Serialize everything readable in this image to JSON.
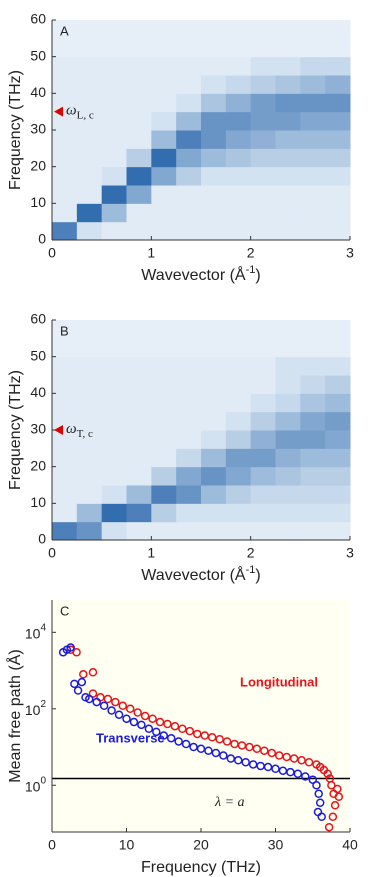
{
  "chart_data": [
    {
      "type": "heatmap",
      "label": "A",
      "xlabel": [
        "Wavevector (Å",
        "-1",
        ")"
      ],
      "ylabel": "Frequency (THz)",
      "xlim": [
        0,
        3
      ],
      "ylim": [
        0,
        60
      ],
      "xticks": [
        0,
        1,
        2,
        3
      ],
      "yticks": [
        0,
        10,
        20,
        30,
        40,
        50,
        60
      ],
      "color": "#1f5fa8",
      "marker": {
        "value": 35,
        "symbol": "ω",
        "sub": "L, c",
        "color": "#e00000"
      },
      "z": [
        [
          0.6,
          0.1,
          0.05,
          0.05,
          0.05,
          0.05,
          0.05,
          0.05,
          0.05,
          0.05,
          0.05,
          0.05
        ],
        [
          0.05,
          0.7,
          0.3,
          0.05,
          0.05,
          0.05,
          0.05,
          0.05,
          0.05,
          0.05,
          0.05,
          0.05
        ],
        [
          0.05,
          0.05,
          0.7,
          0.4,
          0.05,
          0.05,
          0.05,
          0.05,
          0.05,
          0.05,
          0.05,
          0.05
        ],
        [
          0.05,
          0.05,
          0.1,
          0.7,
          0.4,
          0.2,
          0.1,
          0.1,
          0.1,
          0.1,
          0.1,
          0.1
        ],
        [
          0.05,
          0.05,
          0.05,
          0.2,
          0.7,
          0.4,
          0.3,
          0.25,
          0.2,
          0.2,
          0.2,
          0.2
        ],
        [
          0.05,
          0.05,
          0.05,
          0.05,
          0.3,
          0.6,
          0.5,
          0.4,
          0.35,
          0.3,
          0.3,
          0.3
        ],
        [
          0.05,
          0.05,
          0.05,
          0.05,
          0.1,
          0.3,
          0.5,
          0.5,
          0.45,
          0.45,
          0.4,
          0.4
        ],
        [
          0.05,
          0.05,
          0.05,
          0.05,
          0.05,
          0.1,
          0.25,
          0.35,
          0.45,
          0.5,
          0.5,
          0.5
        ],
        [
          0.05,
          0.05,
          0.05,
          0.05,
          0.05,
          0.05,
          0.1,
          0.15,
          0.2,
          0.25,
          0.3,
          0.35
        ],
        [
          0.05,
          0.05,
          0.05,
          0.05,
          0.05,
          0.05,
          0.05,
          0.05,
          0.1,
          0.1,
          0.15,
          0.15
        ],
        [
          0.03,
          0.03,
          0.03,
          0.03,
          0.03,
          0.03,
          0.03,
          0.03,
          0.03,
          0.03,
          0.03,
          0.03
        ],
        [
          0.03,
          0.03,
          0.03,
          0.03,
          0.03,
          0.03,
          0.03,
          0.03,
          0.03,
          0.03,
          0.03,
          0.03
        ]
      ]
    },
    {
      "type": "heatmap",
      "label": "B",
      "xlabel": [
        "Wavevector (Å",
        "-1",
        ")"
      ],
      "ylabel": "Frequency (THz)",
      "xlim": [
        0,
        3
      ],
      "ylim": [
        0,
        60
      ],
      "xticks": [
        0,
        1,
        2,
        3
      ],
      "yticks": [
        0,
        10,
        20,
        30,
        40,
        50,
        60
      ],
      "color": "#1f5fa8",
      "marker": {
        "value": 30,
        "symbol": "ω",
        "sub": "T, c",
        "color": "#e00000"
      },
      "z": [
        [
          0.6,
          0.5,
          0.1,
          0.05,
          0.05,
          0.05,
          0.05,
          0.05,
          0.05,
          0.05,
          0.05,
          0.05
        ],
        [
          0.05,
          0.3,
          0.7,
          0.6,
          0.2,
          0.1,
          0.1,
          0.1,
          0.1,
          0.1,
          0.1,
          0.1
        ],
        [
          0.05,
          0.05,
          0.1,
          0.3,
          0.6,
          0.5,
          0.3,
          0.2,
          0.15,
          0.15,
          0.15,
          0.15
        ],
        [
          0.05,
          0.05,
          0.05,
          0.05,
          0.2,
          0.4,
          0.5,
          0.4,
          0.3,
          0.25,
          0.2,
          0.2
        ],
        [
          0.05,
          0.05,
          0.05,
          0.05,
          0.05,
          0.15,
          0.3,
          0.45,
          0.45,
          0.35,
          0.3,
          0.3
        ],
        [
          0.05,
          0.05,
          0.05,
          0.05,
          0.05,
          0.05,
          0.1,
          0.2,
          0.35,
          0.45,
          0.45,
          0.4
        ],
        [
          0.05,
          0.05,
          0.05,
          0.05,
          0.05,
          0.05,
          0.05,
          0.1,
          0.2,
          0.3,
          0.4,
          0.45
        ],
        [
          0.05,
          0.05,
          0.05,
          0.05,
          0.05,
          0.05,
          0.05,
          0.05,
          0.1,
          0.15,
          0.25,
          0.3
        ],
        [
          0.05,
          0.05,
          0.05,
          0.05,
          0.05,
          0.05,
          0.05,
          0.05,
          0.05,
          0.1,
          0.15,
          0.2
        ],
        [
          0.05,
          0.05,
          0.05,
          0.05,
          0.05,
          0.05,
          0.05,
          0.05,
          0.05,
          0.1,
          0.1,
          0.1
        ],
        [
          0.03,
          0.03,
          0.03,
          0.03,
          0.03,
          0.03,
          0.03,
          0.03,
          0.03,
          0.03,
          0.03,
          0.03
        ],
        [
          0.03,
          0.03,
          0.03,
          0.03,
          0.03,
          0.03,
          0.03,
          0.03,
          0.03,
          0.03,
          0.03,
          0.03
        ]
      ]
    },
    {
      "type": "scatter",
      "label": "C",
      "xlabel": [
        "Frequency (THz)"
      ],
      "ylabel": "Mean free path (Å)",
      "xlim": [
        0,
        40
      ],
      "ylim": [
        0.06,
        70000
      ],
      "yscale": "log",
      "xticks": [
        0,
        10,
        20,
        30,
        40
      ],
      "yticks": [
        {
          "value": 1,
          "label": "10",
          "exp": "0"
        },
        {
          "value": 100,
          "label": "10",
          "exp": "2"
        },
        {
          "value": 10000,
          "label": "10",
          "exp": "4"
        }
      ],
      "background": "#fffff2",
      "hline": {
        "value": 1.5,
        "label": "λ = a"
      },
      "series": [
        {
          "name": "Longitudinal",
          "color": "#e8141b",
          "x": [
            2.5,
            3.3,
            4.2,
            5.5,
            5.5,
            6.5,
            7.5,
            8.5,
            9.5,
            10.5,
            11.5,
            12.5,
            13.5,
            14.5,
            15.5,
            16.5,
            17.5,
            18.5,
            19.5,
            20.5,
            21.5,
            22.5,
            23.5,
            24.5,
            25.5,
            26.5,
            27.5,
            28.5,
            29.5,
            30.5,
            31.5,
            32.5,
            33.5,
            34.5,
            35.5,
            36,
            36.5,
            37,
            37.3,
            37.5,
            37.8,
            38,
            37.7,
            38.3,
            38.5,
            37.2
          ],
          "values": [
            3500,
            3000,
            800,
            900,
            250,
            200,
            180,
            150,
            120,
            100,
            80,
            65,
            55,
            45,
            40,
            35,
            30,
            26,
            22,
            20,
            18,
            16,
            14,
            12,
            11,
            10,
            9,
            8,
            7,
            6,
            5.5,
            5,
            4.5,
            4,
            3.5,
            3,
            2.5,
            2,
            1.5,
            1,
            0.6,
            0.3,
            0.15,
            0.8,
            0.5,
            0.08
          ]
        },
        {
          "name": "Transverse",
          "color": "#1a1adc",
          "x": [
            1.5,
            2,
            2.5,
            3,
            3.5,
            4,
            4.5,
            5,
            6,
            7,
            8,
            9,
            10,
            11,
            12,
            13,
            14,
            15,
            16,
            17,
            18,
            19,
            20,
            21,
            22,
            23,
            24,
            25,
            26,
            27,
            28,
            29,
            30,
            31,
            32,
            33,
            34,
            35,
            35.5,
            35.8,
            36,
            35.7,
            36.2
          ],
          "values": [
            3000,
            3500,
            4000,
            450,
            300,
            500,
            200,
            180,
            150,
            120,
            90,
            70,
            55,
            45,
            38,
            30,
            25,
            20,
            17,
            14,
            12,
            10,
            9,
            8,
            7,
            6,
            5,
            4.5,
            4,
            3.5,
            3.2,
            3,
            2.7,
            2.4,
            2.2,
            2,
            1.7,
            1.4,
            1,
            0.6,
            0.35,
            0.2,
            0.15
          ]
        }
      ]
    }
  ]
}
